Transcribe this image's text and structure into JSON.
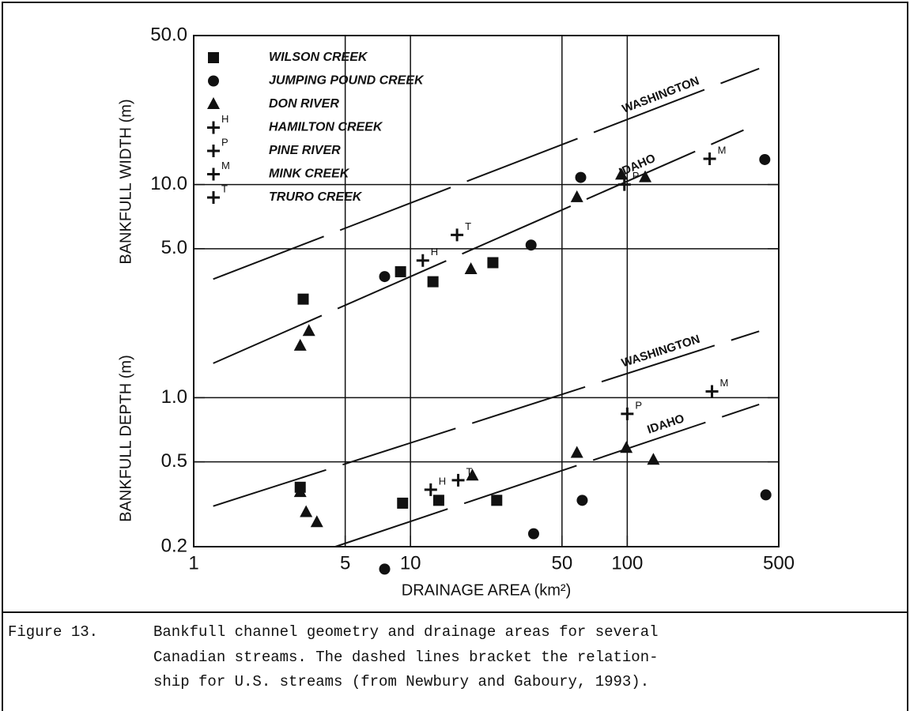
{
  "chart_data": {
    "type": "scatter",
    "log_x": true,
    "log_y": true,
    "grid": true,
    "legend": "upper left",
    "xlabel": "DRAINAGE AREA (km²)",
    "ylabels": [
      "BANKFULL WIDTH (m)",
      "BANKFULL DEPTH (m)"
    ],
    "xlim": [
      1,
      500
    ],
    "xticks": [
      1,
      5,
      10,
      50,
      100,
      500
    ],
    "ylim": [
      0.2,
      50
    ],
    "yticks": [
      0.2,
      0.5,
      {
        "value": 1,
        "label": "1.0"
      },
      {
        "value": 5,
        "label": "5.0"
      },
      {
        "value": 10,
        "label": "10.0"
      },
      {
        "value": 50,
        "label": "50.0"
      }
    ],
    "series": [
      {
        "name": "WILSON CREEK",
        "marker": "square",
        "color": "#111",
        "x": [
          3.2,
          9.0,
          12.7,
          24,
          3.1,
          9.2,
          13.5,
          25
        ],
        "y": [
          2.9,
          3.9,
          3.5,
          4.3,
          0.38,
          0.32,
          0.33,
          0.33
        ]
      },
      {
        "name": "JUMPING POUND CREEK",
        "marker": "circle",
        "color": "#111",
        "x": [
          7.6,
          36,
          61,
          431,
          7.6,
          37,
          62,
          436
        ],
        "y": [
          3.7,
          5.2,
          10.8,
          13.1,
          0.157,
          0.23,
          0.33,
          0.35
        ]
      },
      {
        "name": "DON RIVER",
        "marker": "triangle",
        "color": "#111",
        "x": [
          3.1,
          3.4,
          19,
          58.6,
          94,
          121,
          3.1,
          3.3,
          3.7,
          19.3,
          58.6,
          99,
          132
        ],
        "y": [
          1.75,
          2.05,
          4.0,
          8.7,
          11.1,
          10.8,
          0.36,
          0.29,
          0.26,
          0.43,
          0.55,
          0.58,
          0.51
        ]
      },
      {
        "name": "HAMILTON CREEK",
        "marker": "plus",
        "symbol_label": "H",
        "color": "#111",
        "x": [
          11.4,
          12.4
        ],
        "y": [
          4.4,
          0.37
        ]
      },
      {
        "name": "PINE RIVER",
        "marker": "plus",
        "symbol_label": "P",
        "color": "#111",
        "x": [
          97,
          100
        ],
        "y": [
          10.0,
          0.84
        ]
      },
      {
        "name": "MINK CREEK",
        "marker": "plus",
        "symbol_label": "M",
        "color": "#111",
        "x": [
          240,
          246
        ],
        "y": [
          13.2,
          1.07
        ]
      },
      {
        "name": "TRURO CREEK",
        "marker": "plus",
        "symbol_label": "T",
        "color": "#111",
        "x": [
          16.4,
          16.6
        ],
        "y": [
          5.8,
          0.41
        ]
      }
    ],
    "reference_lines": [
      {
        "name": "WASHINGTON",
        "x": [
          1.23,
          406
        ],
        "y": [
          3.6,
          35
        ]
      },
      {
        "name": "IDAHO",
        "x": [
          1.23,
          344
        ],
        "y": [
          1.45,
          18
        ]
      },
      {
        "name": "WASHINGTON",
        "x": [
          1.23,
          406
        ],
        "y": [
          0.31,
          2.05
        ]
      },
      {
        "name": "IDAHO",
        "x": [
          4.5,
          406
        ],
        "y": [
          0.2,
          0.93
        ]
      }
    ]
  },
  "caption": {
    "label": "Figure 13.",
    "lines": [
      "Bankfull channel geometry and drainage areas for several",
      "Canadian streams.  The dashed lines bracket the relation-",
      "ship for U.S. streams (from Newbury and Gaboury, 1993)."
    ]
  }
}
